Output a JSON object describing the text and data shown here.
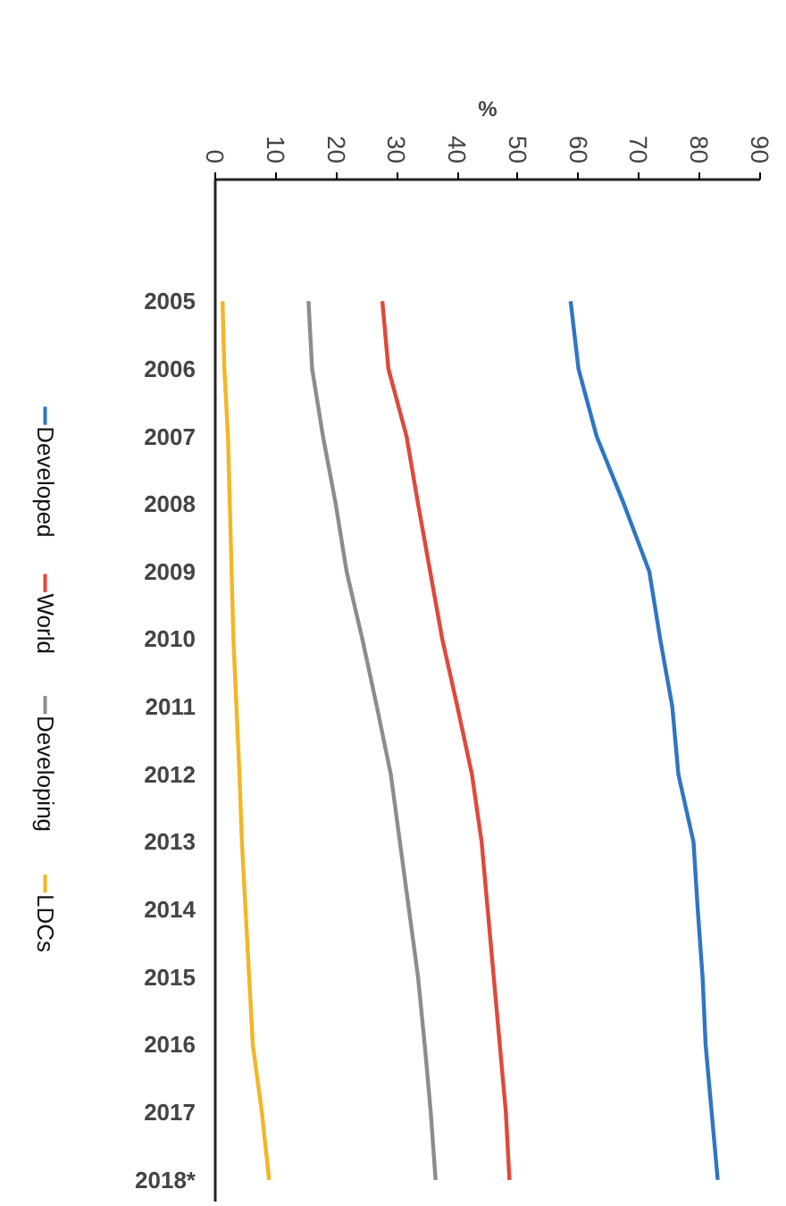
{
  "chart_data": {
    "type": "line",
    "orientation": "horizontal",
    "xlabel": "%",
    "categories": [
      "2005",
      "2006",
      "2007",
      "2008",
      "2009",
      "2010",
      "2011",
      "2012",
      "2013",
      "2014",
      "2015",
      "2016",
      "2017",
      "2018*"
    ],
    "xlim": [
      0,
      90
    ],
    "xticks": [
      0,
      10,
      20,
      30,
      40,
      50,
      60,
      70,
      80,
      90
    ],
    "legend": "left",
    "grid": false,
    "series": [
      {
        "name": "Developed",
        "color": "#2e75c6",
        "values": [
          58.7,
          60,
          63,
          67.5,
          71.7,
          73.5,
          75.5,
          76.5,
          79,
          79.7,
          80.5,
          81,
          82,
          83
        ]
      },
      {
        "name": "World",
        "color": "#e0483a",
        "values": [
          27.6,
          28.6,
          31.6,
          33.5,
          35.5,
          37.5,
          40,
          42.4,
          44,
          45,
          46,
          47,
          48,
          48.6
        ]
      },
      {
        "name": "Developing",
        "color": "#8c8c8c",
        "values": [
          15.4,
          16,
          17.8,
          19.9,
          21.7,
          24.3,
          26.7,
          29,
          30.5,
          32,
          33.5,
          34.6,
          35.6,
          36.4
        ]
      },
      {
        "name": "LDCs",
        "color": "#f2b625",
        "values": [
          1.2,
          1.5,
          2.1,
          2.4,
          2.7,
          3,
          3.5,
          4,
          4.4,
          5,
          5.6,
          6.2,
          7.7,
          8.9
        ]
      }
    ]
  }
}
